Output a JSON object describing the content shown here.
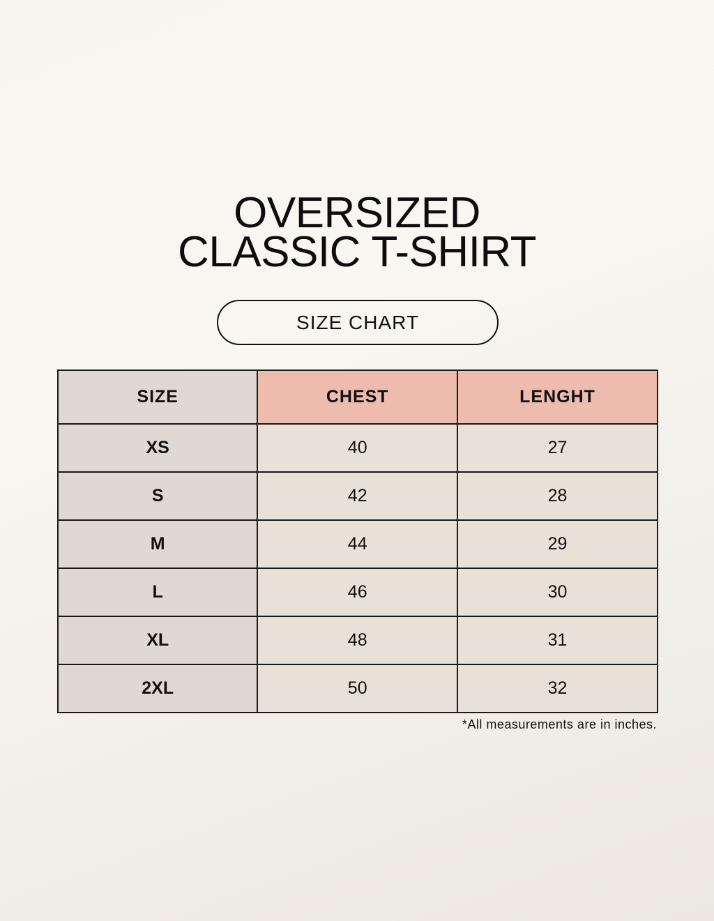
{
  "title_line1": "OVERSIZED",
  "title_line2": "CLASSIC T-SHIRT",
  "subtitle": "SIZE CHART",
  "table": {
    "headers": [
      "SIZE",
      "CHEST",
      "LENGHT"
    ],
    "rows": [
      [
        "XS",
        "40",
        "27"
      ],
      [
        "S",
        "42",
        "28"
      ],
      [
        "M",
        "44",
        "29"
      ],
      [
        "L",
        "46",
        "30"
      ],
      [
        "XL",
        "48",
        "31"
      ],
      [
        "2XL",
        "50",
        "32"
      ]
    ]
  },
  "note": "*All measurements are in inches.",
  "colors": {
    "header_accent": "#edbcae",
    "size_column": "#dfd8d3",
    "cell": "#e9e1d7"
  }
}
